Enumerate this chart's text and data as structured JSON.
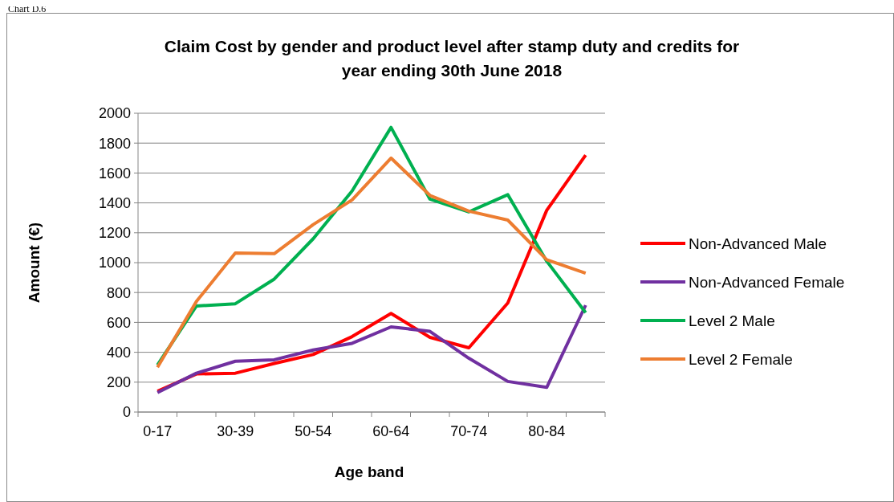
{
  "chart_data": {
    "type": "line",
    "title": "Claim Cost by gender and product level after stamp duty and credits for year ending 30th June 2018",
    "xlabel": "Age band",
    "ylabel": "Amount (€)",
    "annotations": [
      "Chart D.6"
    ],
    "categories": [
      "0-17",
      null,
      "30-39",
      null,
      "50-54",
      null,
      "60-64",
      null,
      "70-74",
      null,
      "80-84",
      null
    ],
    "ylim": [
      0,
      2000
    ],
    "yticks": [
      0,
      200,
      400,
      600,
      800,
      1000,
      1200,
      1400,
      1600,
      1800,
      2000
    ],
    "grid": "y",
    "legend": "right",
    "marker": "none",
    "line_style": "solid",
    "series": [
      {
        "name": "Non-Advanced Male",
        "color": "#ff0000",
        "values": [
          140,
          255,
          260,
          325,
          385,
          505,
          660,
          500,
          430,
          730,
          1350,
          1720
        ]
      },
      {
        "name": "Non-Advanced Female",
        "color": "#7030a0",
        "values": [
          130,
          260,
          340,
          350,
          415,
          460,
          570,
          540,
          360,
          205,
          165,
          715
        ]
      },
      {
        "name": "Level 2 Male",
        "color": "#00b050",
        "values": [
          315,
          710,
          725,
          890,
          1160,
          1480,
          1905,
          1425,
          1340,
          1455,
          1010,
          665
        ]
      },
      {
        "name": "Level 2 Female",
        "color": "#ed7d31",
        "values": [
          300,
          740,
          1065,
          1060,
          1255,
          1420,
          1700,
          1450,
          1345,
          1285,
          1020,
          930
        ]
      }
    ]
  }
}
